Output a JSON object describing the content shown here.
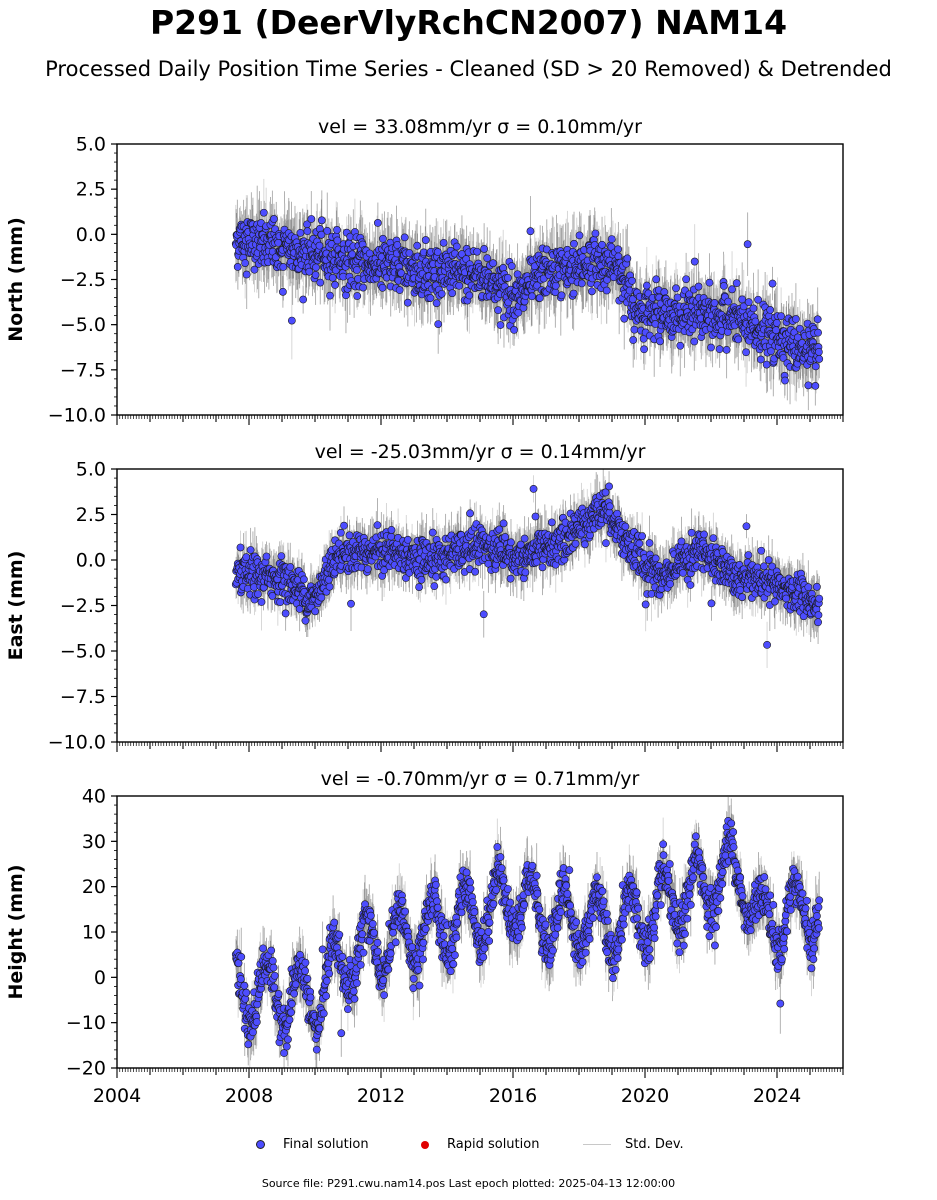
{
  "title": "P291 (DeerVlyRchCN2007) NAM14",
  "subtitle": "Processed Daily Position Time Series - Cleaned (SD > 20 Removed) & Detrended",
  "legend": {
    "final": "Final solution",
    "rapid": "Rapid solution",
    "std": "Std. Dev."
  },
  "footer": "Source file: P291.cwu.nam14.pos  Last epoch plotted: 2025-04-13 12:00:00",
  "colors": {
    "final": "#4d4dff",
    "rapid": "#e00000",
    "std": "#c8c8c8",
    "std_dark": "#555555"
  },
  "chart_data": [
    {
      "type": "scatter",
      "ylabel": "North (mm)",
      "annotation": "vel = 33.08mm/yr   σ = 0.10mm/yr",
      "xlim": [
        2004,
        2026
      ],
      "ylim": [
        -10,
        5
      ],
      "yticks": [
        5.0,
        2.5,
        0.0,
        -2.5,
        -5.0,
        -7.5,
        -10.0
      ],
      "yticklabels": [
        "5.0",
        "2.5",
        "0.0",
        "−2.5",
        "−5.0",
        "−7.5",
        "−10.0"
      ],
      "xticks": [
        2004,
        2008,
        2012,
        2016,
        2020,
        2024
      ],
      "xticklabels": [],
      "data_start": 2007.6,
      "data_end": 2025.28,
      "trend": [
        [
          2007.6,
          -0.3
        ],
        [
          2009,
          -0.8
        ],
        [
          2011,
          -1.5
        ],
        [
          2013,
          -2.0
        ],
        [
          2015,
          -2.2
        ],
        [
          2016.2,
          -3.6
        ],
        [
          2016.8,
          -2.2
        ],
        [
          2018.5,
          -1.5
        ],
        [
          2019.3,
          -2.0
        ],
        [
          2019.7,
          -4.3
        ],
        [
          2022.5,
          -4.6
        ],
        [
          2023.5,
          -5.3
        ],
        [
          2025.28,
          -6.8
        ]
      ],
      "spread": 1.2
    },
    {
      "type": "scatter",
      "ylabel": "East (mm)",
      "annotation": "vel = -25.03mm/yr   σ = 0.14mm/yr",
      "xlim": [
        2004,
        2026
      ],
      "ylim": [
        -10,
        5
      ],
      "yticks": [
        5.0,
        2.5,
        0.0,
        -2.5,
        -5.0,
        -7.5,
        -10.0
      ],
      "yticklabels": [
        "5.0",
        "2.5",
        "0.0",
        "−2.5",
        "−5.0",
        "−7.5",
        "−10.0"
      ],
      "xticks": [
        2004,
        2008,
        2012,
        2016,
        2020,
        2024
      ],
      "xticklabels": [],
      "data_start": 2007.6,
      "data_end": 2025.28,
      "trend": [
        [
          2007.6,
          -0.8
        ],
        [
          2009,
          -1.0
        ],
        [
          2010,
          -2.3
        ],
        [
          2010.6,
          0.3
        ],
        [
          2012,
          0.6
        ],
        [
          2013.5,
          0.0
        ],
        [
          2015,
          0.8
        ],
        [
          2016,
          0.0
        ],
        [
          2017.5,
          1.0
        ],
        [
          2018.8,
          3.0
        ],
        [
          2019.6,
          0.5
        ],
        [
          2020.5,
          -1.0
        ],
        [
          2021.5,
          0.5
        ],
        [
          2023,
          -1.0
        ],
        [
          2025.28,
          -2.2
        ]
      ],
      "spread": 0.9
    },
    {
      "type": "scatter",
      "ylabel": "Height (mm)",
      "annotation": "vel = -0.70mm/yr   σ = 0.71mm/yr",
      "xlim": [
        2004,
        2026
      ],
      "ylim": [
        -20,
        40
      ],
      "yticks": [
        40,
        30,
        20,
        10,
        0,
        -10,
        -20
      ],
      "yticklabels": [
        "40",
        "30",
        "20",
        "10",
        "0",
        "−10",
        "−20"
      ],
      "xticks": [
        2004,
        2008,
        2012,
        2016,
        2020,
        2024
      ],
      "xticklabels": [
        "2004",
        "2008",
        "2012",
        "2016",
        "2020",
        "2024"
      ],
      "data_start": 2007.6,
      "data_end": 2025.28,
      "trend": [
        [
          2007.6,
          -3
        ],
        [
          2009,
          -4
        ],
        [
          2010,
          -5
        ],
        [
          2011,
          5
        ],
        [
          2013,
          9
        ],
        [
          2014,
          12
        ],
        [
          2015,
          14
        ],
        [
          2016,
          18
        ],
        [
          2017,
          13
        ],
        [
          2018.5,
          12
        ],
        [
          2019.5,
          12
        ],
        [
          2021,
          17
        ],
        [
          2022.8,
          24
        ],
        [
          2023.5,
          12
        ],
        [
          2025.28,
          16
        ]
      ],
      "spread": 4.0,
      "seasonal": 7.0
    }
  ]
}
